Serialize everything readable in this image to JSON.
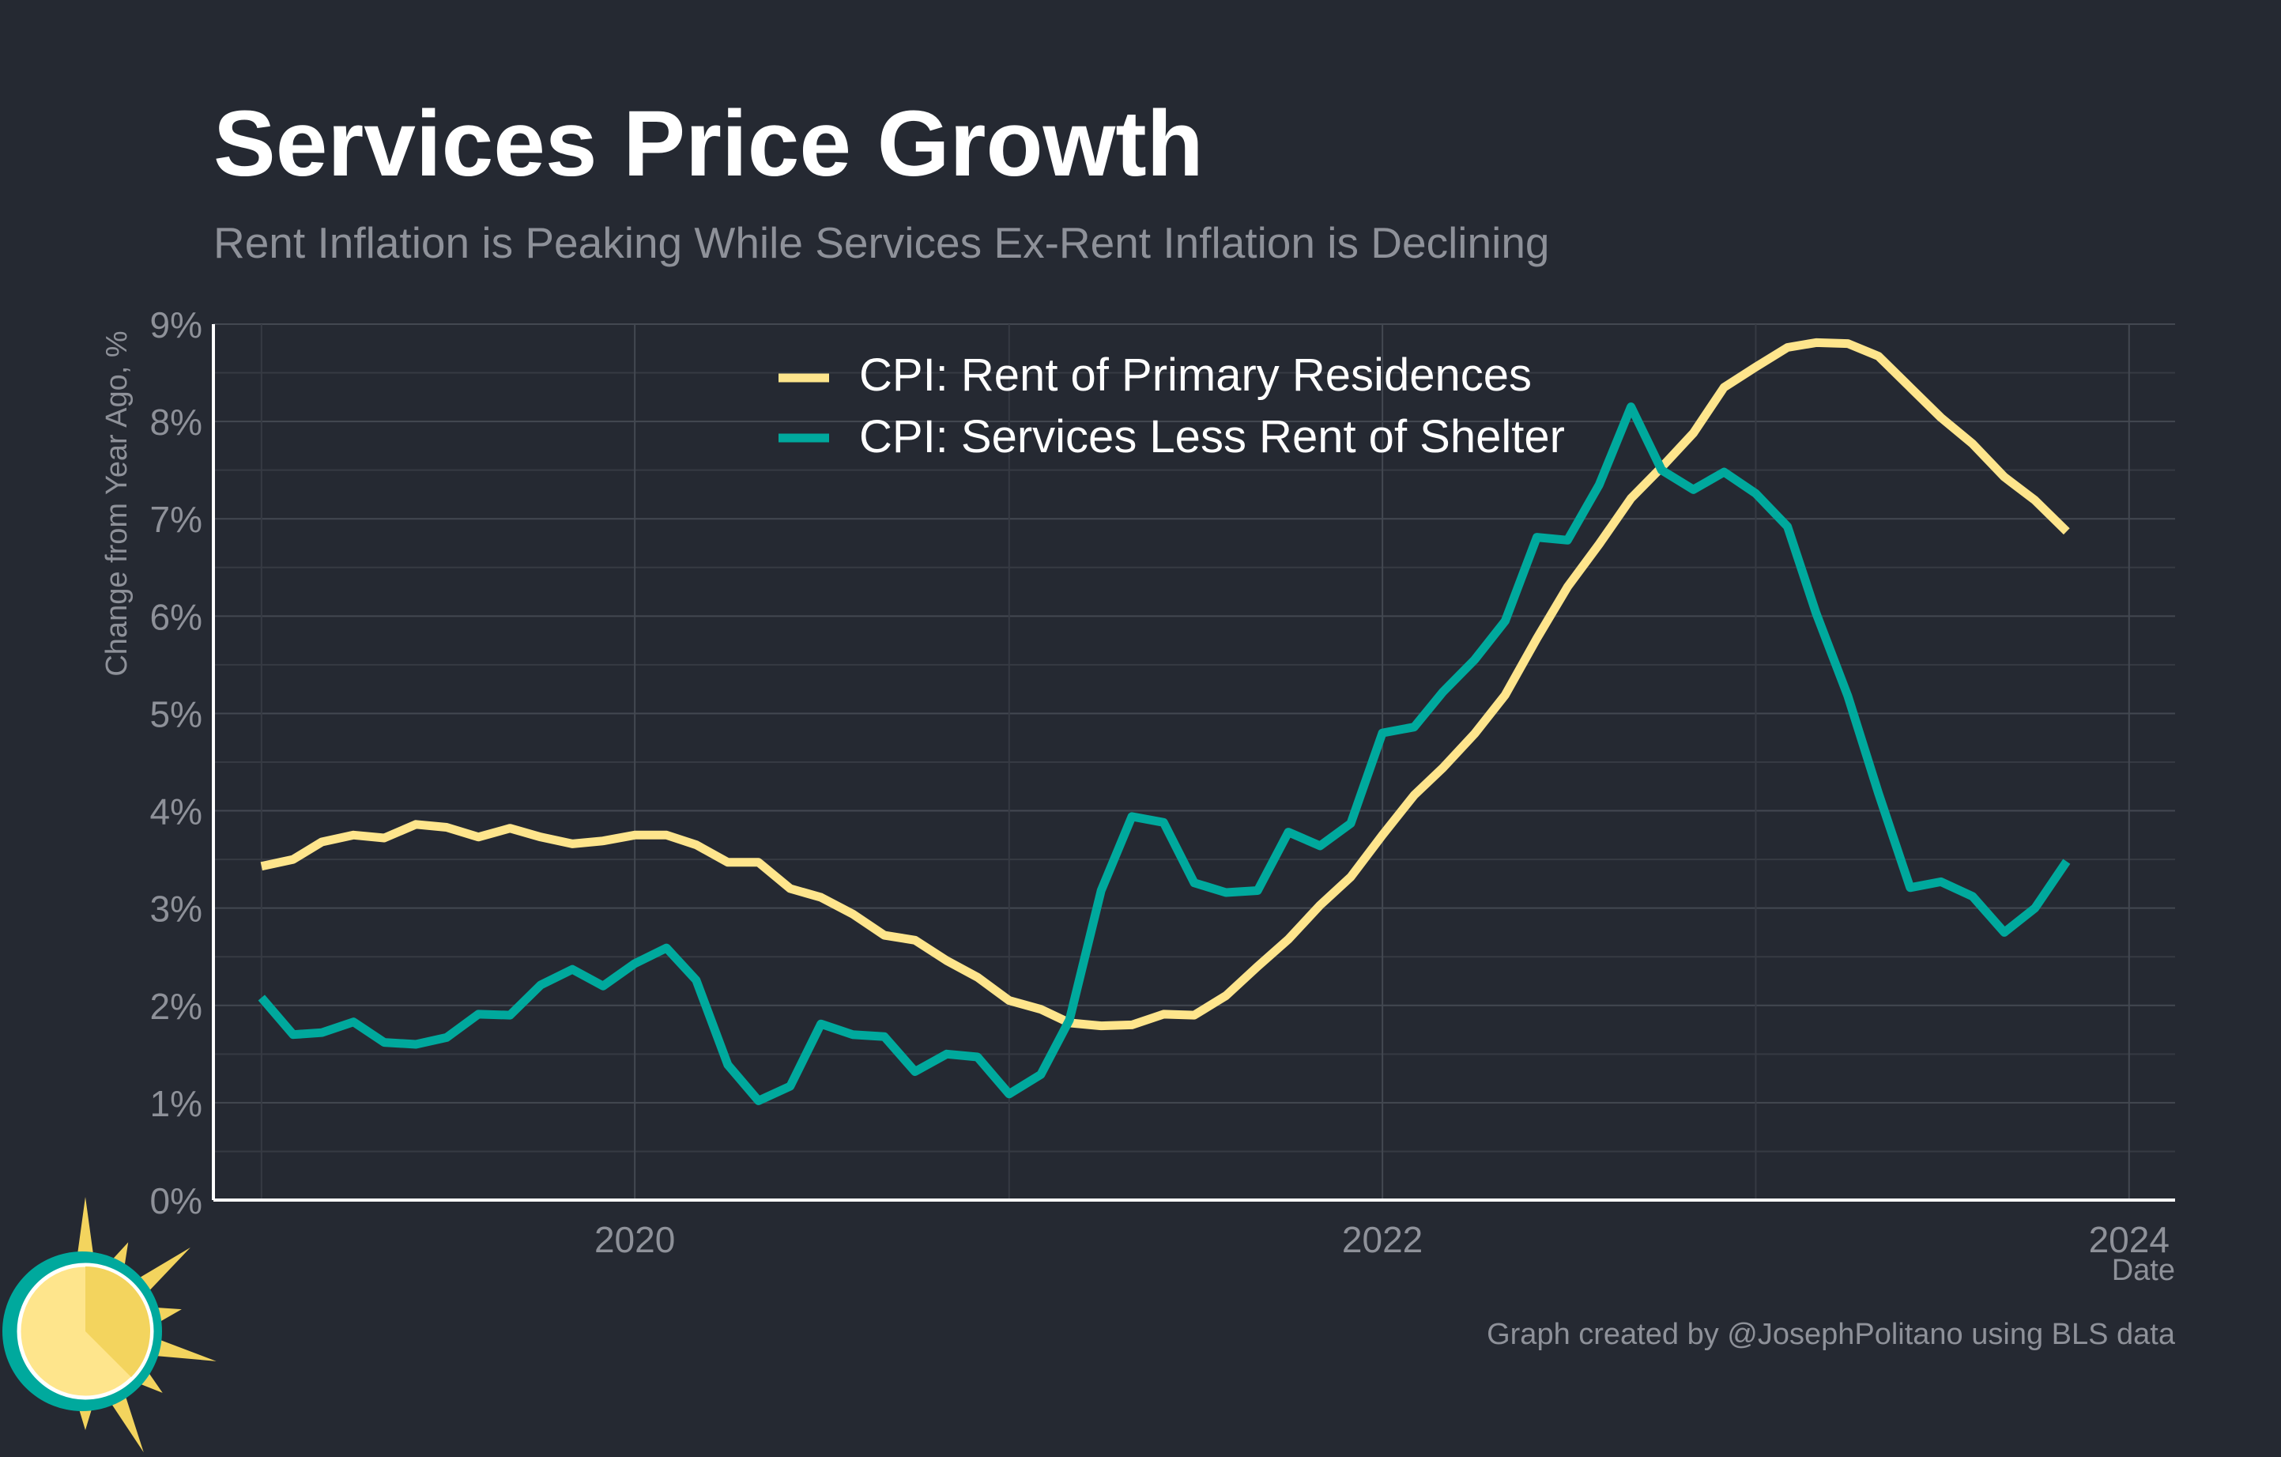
{
  "chart_data": {
    "type": "line",
    "title": "Services Price Growth",
    "subtitle": "Rent Inflation is Peaking While Services Ex-Rent Inflation is Declining",
    "ylabel": "Change from Year Ago, %",
    "xlabel": "Date",
    "caption": "Graph created by @JosephPolitano using BLS data",
    "ylim": [
      0,
      9
    ],
    "y_ticks": [
      0,
      1,
      2,
      3,
      4,
      5,
      6,
      7,
      8,
      9
    ],
    "y_tick_labels": [
      "0%",
      "1%",
      "2%",
      "3%",
      "4%",
      "5%",
      "6%",
      "7%",
      "8%",
      "9%"
    ],
    "x_ticks": [
      "2020-01-01",
      "2022-01-01",
      "2024-01-01"
    ],
    "x_tick_labels": [
      "2020",
      "2022",
      "2024"
    ],
    "xlim": [
      "2018-11-15",
      "2024-02-15"
    ],
    "grid": true,
    "legend_position": "top-center",
    "series": [
      {
        "name": "CPI: Rent of Primary Residences",
        "color": "#FEE58C",
        "x": [
          "2019-01",
          "2019-02",
          "2019-03",
          "2019-04",
          "2019-05",
          "2019-06",
          "2019-07",
          "2019-08",
          "2019-09",
          "2019-10",
          "2019-11",
          "2019-12",
          "2020-01",
          "2020-02",
          "2020-03",
          "2020-04",
          "2020-05",
          "2020-06",
          "2020-07",
          "2020-08",
          "2020-09",
          "2020-10",
          "2020-11",
          "2020-12",
          "2021-01",
          "2021-02",
          "2021-03",
          "2021-04",
          "2021-05",
          "2021-06",
          "2021-07",
          "2021-08",
          "2021-09",
          "2021-10",
          "2021-11",
          "2021-12",
          "2022-01",
          "2022-02",
          "2022-03",
          "2022-04",
          "2022-05",
          "2022-06",
          "2022-07",
          "2022-08",
          "2022-09",
          "2022-10",
          "2022-11",
          "2022-12",
          "2023-01",
          "2023-02",
          "2023-03",
          "2023-04",
          "2023-05",
          "2023-06",
          "2023-07",
          "2023-08",
          "2023-09",
          "2023-10",
          "2023-11"
        ],
        "values": [
          3.43,
          3.5,
          3.68,
          3.75,
          3.72,
          3.86,
          3.83,
          3.73,
          3.82,
          3.73,
          3.66,
          3.69,
          3.75,
          3.75,
          3.65,
          3.47,
          3.47,
          3.2,
          3.11,
          2.94,
          2.72,
          2.67,
          2.46,
          2.29,
          2.05,
          1.96,
          1.82,
          1.79,
          1.8,
          1.91,
          1.9,
          2.1,
          2.4,
          2.68,
          3.03,
          3.32,
          3.75,
          4.16,
          4.44,
          4.79,
          5.19,
          5.77,
          6.3,
          6.74,
          7.21,
          7.53,
          7.88,
          8.35,
          8.56,
          8.76,
          8.81,
          8.8,
          8.67,
          8.35,
          8.04,
          7.77,
          7.43,
          7.19,
          6.87
        ]
      },
      {
        "name": "CPI: Services Less Rent of Shelter",
        "color": "#00A99D",
        "x": [
          "2019-01",
          "2019-02",
          "2019-03",
          "2019-04",
          "2019-05",
          "2019-06",
          "2019-07",
          "2019-08",
          "2019-09",
          "2019-10",
          "2019-11",
          "2019-12",
          "2020-01",
          "2020-02",
          "2020-03",
          "2020-04",
          "2020-05",
          "2020-06",
          "2020-07",
          "2020-08",
          "2020-09",
          "2020-10",
          "2020-11",
          "2020-12",
          "2021-01",
          "2021-02",
          "2021-03",
          "2021-04",
          "2021-05",
          "2021-06",
          "2021-07",
          "2021-08",
          "2021-09",
          "2021-10",
          "2021-11",
          "2021-12",
          "2022-01",
          "2022-02",
          "2022-03",
          "2022-04",
          "2022-05",
          "2022-06",
          "2022-07",
          "2022-08",
          "2022-09",
          "2022-10",
          "2022-11",
          "2022-12",
          "2023-01",
          "2023-02",
          "2023-03",
          "2023-04",
          "2023-05",
          "2023-06",
          "2023-07",
          "2023-08",
          "2023-09",
          "2023-10",
          "2023-11"
        ],
        "values": [
          2.08,
          1.7,
          1.72,
          1.83,
          1.62,
          1.6,
          1.67,
          1.91,
          1.9,
          2.21,
          2.37,
          2.2,
          2.43,
          2.59,
          2.26,
          1.39,
          1.02,
          1.17,
          1.81,
          1.7,
          1.68,
          1.32,
          1.5,
          1.47,
          1.09,
          1.29,
          1.85,
          3.18,
          3.94,
          3.88,
          3.26,
          3.16,
          3.18,
          3.78,
          3.64,
          3.87,
          4.8,
          4.86,
          5.22,
          5.55,
          5.95,
          6.81,
          6.78,
          7.35,
          8.15,
          7.5,
          7.3,
          7.48,
          7.26,
          6.92,
          6.03,
          5.18,
          4.18,
          3.21,
          3.27,
          3.12,
          2.75,
          3.0,
          3.48
        ]
      }
    ]
  },
  "logo_icon": "sun-clock-logo-icon"
}
